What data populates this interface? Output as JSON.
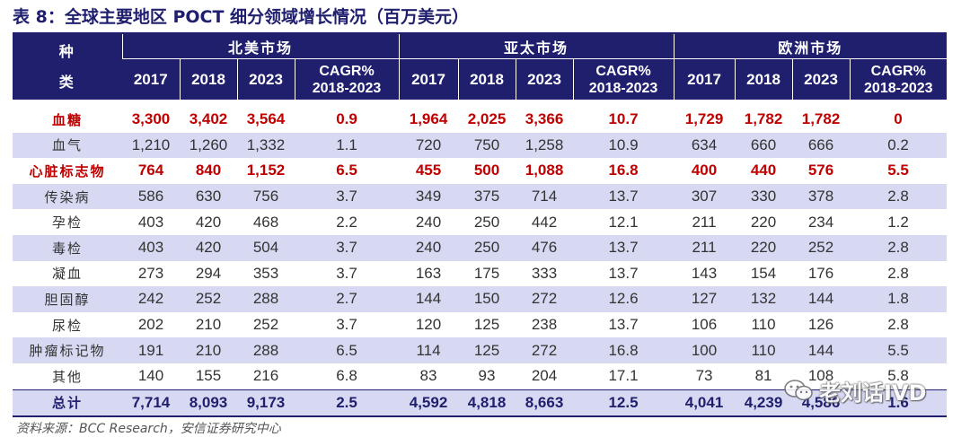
{
  "title": "表 8：全球主要地区 POCT 细分领域增长情况（百万美元）",
  "header": {
    "kind_label": "种\n类",
    "regions": [
      "北美市场",
      "亚太市场",
      "欧洲市场"
    ],
    "subcolumns": [
      "2017",
      "2018",
      "2023",
      "CAGR%\n2018-2023"
    ]
  },
  "rows": [
    {
      "name": "血糖",
      "hl": true,
      "vals": [
        "3,300",
        "3,402",
        "3,564",
        "0.9",
        "1,964",
        "2,025",
        "3,366",
        "10.7",
        "1,729",
        "1,782",
        "1,782",
        "0"
      ]
    },
    {
      "name": "血气",
      "hl": false,
      "vals": [
        "1,210",
        "1,260",
        "1,332",
        "1.1",
        "720",
        "750",
        "1,258",
        "10.9",
        "634",
        "660",
        "666",
        "0.2"
      ]
    },
    {
      "name": "心脏标志物",
      "hl": true,
      "vals": [
        "764",
        "840",
        "1,152",
        "6.5",
        "455",
        "500",
        "1,088",
        "16.8",
        "400",
        "440",
        "576",
        "5.5"
      ]
    },
    {
      "name": "传染病",
      "hl": false,
      "vals": [
        "586",
        "630",
        "756",
        "3.7",
        "349",
        "375",
        "714",
        "13.7",
        "307",
        "330",
        "378",
        "2.8"
      ]
    },
    {
      "name": "孕检",
      "hl": false,
      "vals": [
        "403",
        "420",
        "468",
        "2.2",
        "240",
        "250",
        "442",
        "12.1",
        "211",
        "220",
        "234",
        "1.2"
      ]
    },
    {
      "name": "毒检",
      "hl": false,
      "vals": [
        "403",
        "420",
        "504",
        "3.7",
        "240",
        "250",
        "476",
        "13.7",
        "211",
        "220",
        "252",
        "2.8"
      ]
    },
    {
      "name": "凝血",
      "hl": false,
      "vals": [
        "273",
        "294",
        "353",
        "3.7",
        "163",
        "175",
        "333",
        "13.7",
        "143",
        "154",
        "176",
        "2.8"
      ]
    },
    {
      "name": "胆固醇",
      "hl": false,
      "vals": [
        "242",
        "252",
        "288",
        "2.7",
        "144",
        "150",
        "272",
        "12.6",
        "127",
        "132",
        "144",
        "1.8"
      ]
    },
    {
      "name": "尿检",
      "hl": false,
      "vals": [
        "202",
        "210",
        "252",
        "3.7",
        "120",
        "125",
        "238",
        "13.7",
        "106",
        "110",
        "126",
        "2.8"
      ]
    },
    {
      "name": "肿瘤标记物",
      "hl": false,
      "vals": [
        "191",
        "210",
        "288",
        "6.5",
        "114",
        "125",
        "272",
        "16.8",
        "100",
        "110",
        "144",
        "5.5"
      ]
    },
    {
      "name": "其他",
      "hl": false,
      "vals": [
        "140",
        "155",
        "216",
        "6.8",
        "83",
        "93",
        "204",
        "17.1",
        "73",
        "81",
        "108",
        "5.8"
      ]
    }
  ],
  "total": {
    "name": "总计",
    "vals": [
      "7,714",
      "8,093",
      "9,173",
      "2.5",
      "4,592",
      "4,818",
      "8,663",
      "12.5",
      "4,041",
      "4,239",
      "4,586",
      "1.6"
    ]
  },
  "source": "资料来源：BCC Research，安信证券研究中心",
  "watermark": "老刘话IVD",
  "colors": {
    "header": "#1f1f6e",
    "shade": "#d7d9f3",
    "highlight": "#c00000"
  }
}
